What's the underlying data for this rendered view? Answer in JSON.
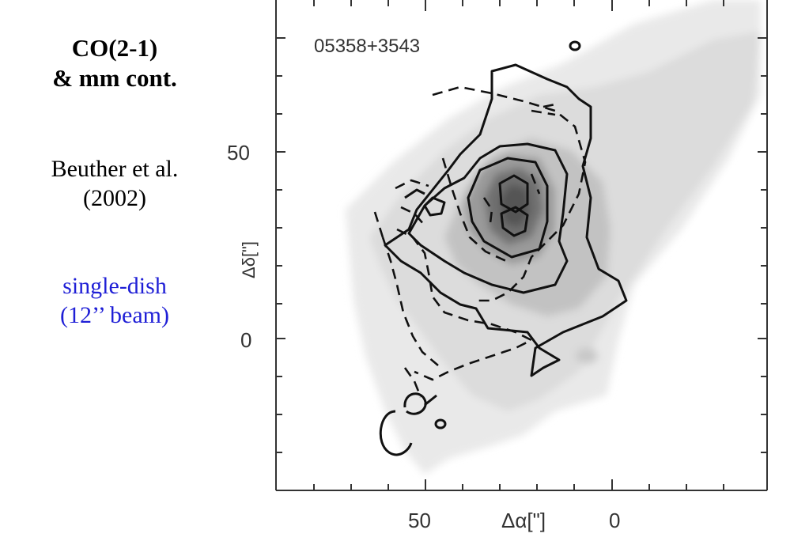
{
  "caption": {
    "title_line1": "CO(2-1)",
    "title_line2": "& mm cont.",
    "citation_line1": "Beuther et al.",
    "citation_line2": "(2002)",
    "beam_line1": "single-dish",
    "beam_line2": "(12’’ beam)",
    "beam_color": "#1f1fd6"
  },
  "figure": {
    "source_label": "05358+3543",
    "x_axis_label": "Δα[\"]",
    "y_axis_label": "Δδ[\"]",
    "x_ticks": [
      "50",
      "0"
    ],
    "y_ticks": [
      "50",
      "0"
    ]
  }
}
